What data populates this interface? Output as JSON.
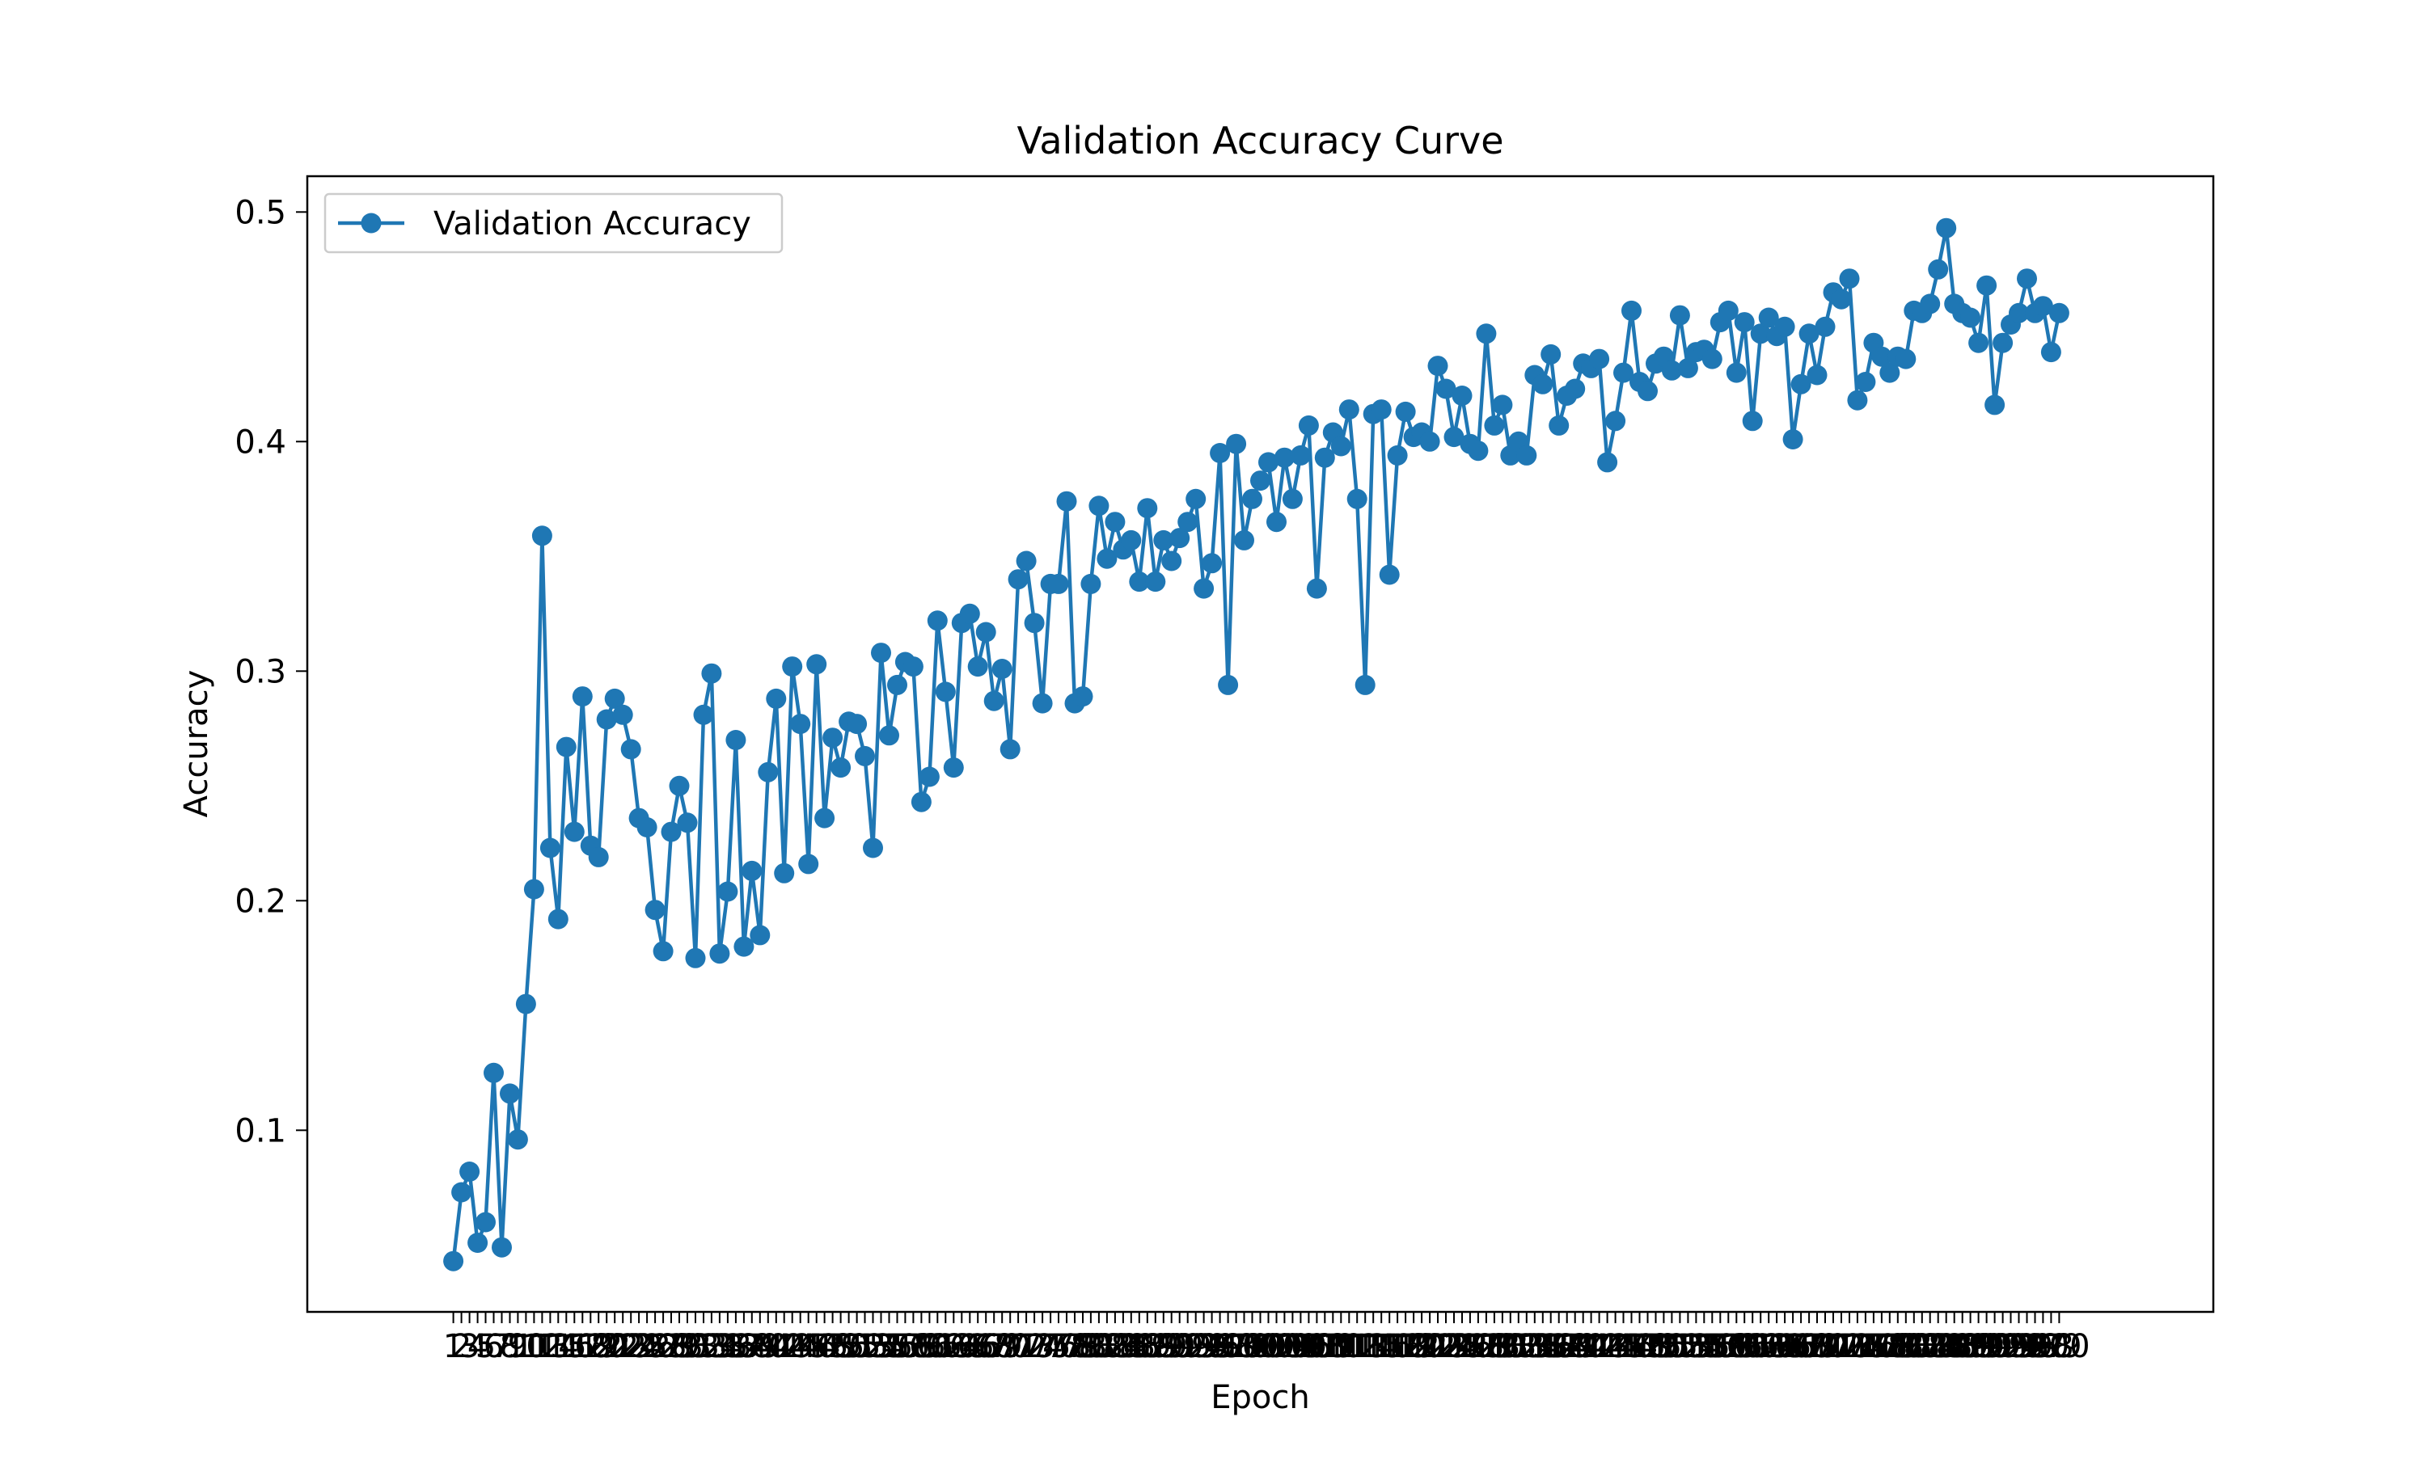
{
  "colors": {
    "series": "#1f77b4",
    "axes": "#000000",
    "legend_border": "#cccccc",
    "background": "#ffffff"
  },
  "chart_data": {
    "type": "line",
    "title": "Validation Accuracy Curve",
    "xlabel": "Epoch",
    "ylabel": "Accuracy",
    "xlim": [
      -17.1,
      219.1
    ],
    "ylim": [
      0.0209,
      0.5156
    ],
    "yticks": [
      0.1,
      0.2,
      0.3,
      0.4,
      0.5
    ],
    "ytick_labels": [
      "0.1",
      "0.2",
      "0.3",
      "0.4",
      "0.5"
    ],
    "xtick_labels_note": "one overlapping tick label per epoch 1..200",
    "legend": {
      "location": "upper left",
      "entries": [
        "Validation Accuracy"
      ]
    },
    "marker": "circle",
    "grid": false,
    "series": [
      {
        "name": "Validation Accuracy",
        "x": [
          1,
          2,
          3,
          4,
          5,
          6,
          7,
          8,
          9,
          10,
          11,
          12,
          13,
          14,
          15,
          16,
          17,
          18,
          19,
          20,
          21,
          22,
          23,
          24,
          25,
          26,
          27,
          28,
          29,
          30,
          31,
          32,
          33,
          34,
          35,
          36,
          37,
          38,
          39,
          40,
          41,
          42,
          43,
          44,
          45,
          46,
          47,
          48,
          49,
          50,
          51,
          52,
          53,
          54,
          55,
          56,
          57,
          58,
          59,
          60,
          61,
          62,
          63,
          64,
          65,
          66,
          67,
          68,
          69,
          70,
          71,
          72,
          73,
          74,
          75,
          76,
          77,
          78,
          79,
          80,
          81,
          82,
          83,
          84,
          85,
          86,
          87,
          88,
          89,
          90,
          91,
          92,
          93,
          94,
          95,
          96,
          97,
          98,
          99,
          100,
          101,
          102,
          103,
          104,
          105,
          106,
          107,
          108,
          109,
          110,
          111,
          112,
          113,
          114,
          115,
          116,
          117,
          118,
          119,
          120,
          121,
          122,
          123,
          124,
          125,
          126,
          127,
          128,
          129,
          130,
          131,
          132,
          133,
          134,
          135,
          136,
          137,
          138,
          139,
          140,
          141,
          142,
          143,
          144,
          145,
          146,
          147,
          148,
          149,
          150,
          151,
          152,
          153,
          154,
          155,
          156,
          157,
          158,
          159,
          160,
          161,
          162,
          163,
          164,
          165,
          166,
          167,
          168,
          169,
          170,
          171,
          172,
          173,
          174,
          175,
          176,
          177,
          178,
          179,
          180,
          181,
          182,
          183,
          184,
          185,
          186,
          187,
          188,
          189,
          190,
          191,
          192,
          193,
          194,
          195,
          196,
          197,
          198,
          199,
          200
        ],
        "values": [
          0.043,
          0.073,
          0.082,
          0.051,
          0.06,
          0.125,
          0.049,
          0.116,
          0.096,
          0.155,
          0.205,
          0.359,
          0.223,
          0.192,
          0.267,
          0.23,
          0.289,
          0.224,
          0.219,
          0.279,
          0.288,
          0.281,
          0.266,
          0.236,
          0.232,
          0.196,
          0.178,
          0.23,
          0.25,
          0.234,
          0.175,
          0.281,
          0.299,
          0.177,
          0.204,
          0.27,
          0.18,
          0.213,
          0.185,
          0.256,
          0.288,
          0.212,
          0.302,
          0.277,
          0.216,
          0.303,
          0.236,
          0.271,
          0.258,
          0.278,
          0.277,
          0.263,
          0.223,
          0.308,
          0.272,
          0.294,
          0.304,
          0.302,
          0.243,
          0.254,
          0.322,
          0.291,
          0.258,
          0.321,
          0.325,
          0.302,
          0.317,
          0.287,
          0.301,
          0.266,
          0.34,
          0.348,
          0.321,
          0.286,
          0.338,
          0.338,
          0.374,
          0.286,
          0.289,
          0.338,
          0.372,
          0.349,
          0.365,
          0.353,
          0.357,
          0.339,
          0.371,
          0.339,
          0.357,
          0.348,
          0.358,
          0.365,
          0.375,
          0.336,
          0.347,
          0.395,
          0.294,
          0.399,
          0.357,
          0.375,
          0.383,
          0.391,
          0.365,
          0.393,
          0.375,
          0.394,
          0.407,
          0.336,
          0.393,
          0.404,
          0.398,
          0.414,
          0.375,
          0.294,
          0.412,
          0.414,
          0.342,
          0.394,
          0.413,
          0.402,
          0.404,
          0.4,
          0.433,
          0.423,
          0.402,
          0.42,
          0.399,
          0.396,
          0.447,
          0.407,
          0.416,
          0.394,
          0.4,
          0.394,
          0.429,
          0.425,
          0.438,
          0.407,
          0.42,
          0.423,
          0.434,
          0.432,
          0.436,
          0.391,
          0.409,
          0.43,
          0.457,
          0.426,
          0.422,
          0.434,
          0.437,
          0.431,
          0.455,
          0.432,
          0.439,
          0.44,
          0.436,
          0.452,
          0.457,
          0.43,
          0.452,
          0.409,
          0.447,
          0.454,
          0.446,
          0.45,
          0.401,
          0.425,
          0.447,
          0.429,
          0.45,
          0.465,
          0.462,
          0.471,
          0.418,
          0.426,
          0.443,
          0.437,
          0.43,
          0.437,
          0.436,
          0.457,
          0.456,
          0.46,
          0.475,
          0.493,
          0.46,
          0.456,
          0.454,
          0.443,
          0.468,
          0.416,
          0.443,
          0.451,
          0.456,
          0.471,
          0.456,
          0.459,
          0.439,
          0.456
        ]
      }
    ]
  }
}
